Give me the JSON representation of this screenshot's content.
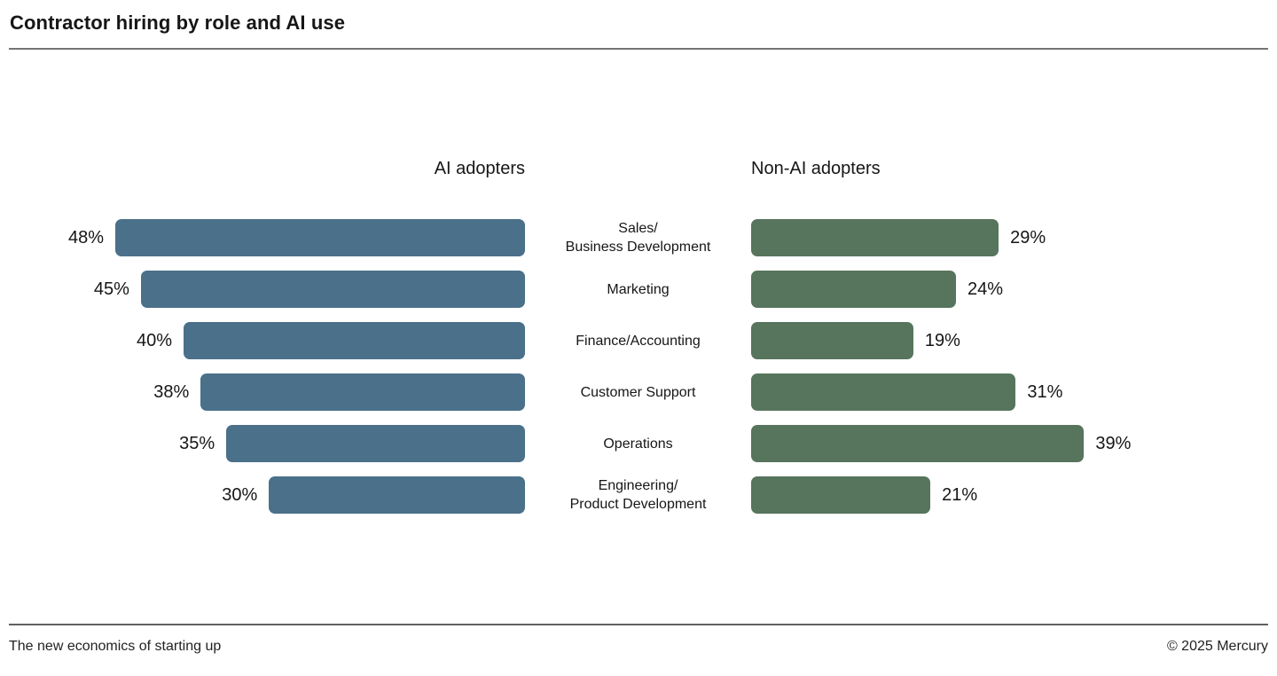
{
  "page": {
    "title": "Contractor hiring by role and AI use",
    "footer_left": "The new economics of starting up",
    "footer_right": "© 2025 Mercury"
  },
  "colors": {
    "ai_adopters_bar": "#4A708A",
    "non_ai_adopters_bar": "#57745C",
    "text": "#161616",
    "rule": "#707070",
    "background": "#FFFFFF"
  },
  "chart_data": {
    "type": "bar",
    "orientation": "horizontal-diverging",
    "title": "Contractor hiring by role and AI use",
    "left_header": "AI adopters",
    "right_header": "Non-AI adopters",
    "categories": [
      "Sales/Business Development",
      "Marketing",
      "Finance/Accounting",
      "Customer Support",
      "Operations",
      "Engineering/Product Development"
    ],
    "category_lines": [
      [
        "Sales/",
        "Business Development"
      ],
      [
        "Marketing"
      ],
      [
        "Finance/Accounting"
      ],
      [
        "Customer Support"
      ],
      [
        "Operations"
      ],
      [
        "Engineering/",
        "Product Development"
      ]
    ],
    "series": [
      {
        "name": "AI adopters",
        "side": "left",
        "color": "#4A708A",
        "values": [
          48,
          45,
          40,
          38,
          35,
          30
        ]
      },
      {
        "name": "Non-AI adopters",
        "side": "right",
        "color": "#57745C",
        "values": [
          29,
          24,
          19,
          31,
          39,
          21
        ]
      }
    ],
    "value_suffix": "%",
    "xlim": [
      0,
      50
    ],
    "grid": false,
    "legend_position": "column-headers"
  }
}
